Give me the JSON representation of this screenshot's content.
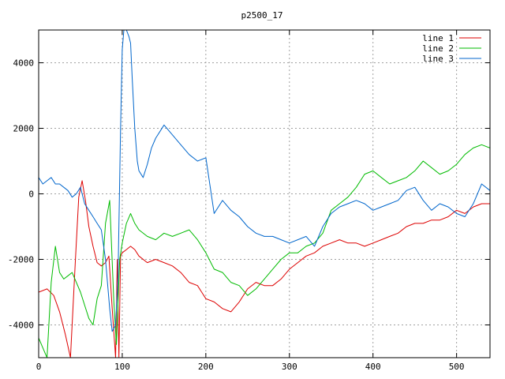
{
  "chart_data": {
    "type": "line",
    "title": "p2500_17",
    "xlabel": "",
    "ylabel": "",
    "xlim": [
      0,
      540
    ],
    "ylim": [
      -5000,
      5000
    ],
    "xticks": [
      0,
      100,
      200,
      300,
      400,
      500
    ],
    "yticks": [
      -4000,
      -2000,
      0,
      2000,
      4000
    ],
    "xtick_labels": [
      "0",
      "100",
      "200",
      "300",
      "400",
      "500"
    ],
    "ytick_labels": [
      "-4000",
      "-2000",
      "0",
      "2000",
      "4000"
    ],
    "grid": true,
    "legend_position": "top-right",
    "series": [
      {
        "name": "line 1",
        "color": "#dd0000",
        "x": [
          0,
          10,
          18,
          25,
          32,
          38,
          44,
          48,
          52,
          56,
          60,
          65,
          70,
          75,
          80,
          84,
          88,
          92,
          94,
          96,
          98,
          100,
          105,
          110,
          115,
          120,
          130,
          140,
          150,
          160,
          170,
          180,
          190,
          200,
          210,
          220,
          230,
          240,
          250,
          260,
          270,
          280,
          290,
          300,
          310,
          320,
          330,
          340,
          350,
          360,
          370,
          380,
          390,
          400,
          410,
          420,
          430,
          440,
          450,
          460,
          470,
          480,
          490,
          500,
          510,
          520,
          530,
          540
        ],
        "y": [
          -3000,
          -2900,
          -3100,
          -3600,
          -4300,
          -5000,
          -2000,
          -100,
          400,
          -200,
          -1000,
          -1600,
          -2100,
          -2200,
          -2100,
          -1900,
          -3500,
          -5000,
          -2000,
          -5000,
          -1900,
          -1800,
          -1700,
          -1600,
          -1700,
          -1900,
          -2100,
          -2000,
          -2100,
          -2200,
          -2400,
          -2700,
          -2800,
          -3200,
          -3300,
          -3500,
          -3600,
          -3300,
          -2900,
          -2700,
          -2800,
          -2800,
          -2600,
          -2300,
          -2100,
          -1900,
          -1800,
          -1600,
          -1500,
          -1400,
          -1500,
          -1500,
          -1600,
          -1500,
          -1400,
          -1300,
          -1200,
          -1000,
          -900,
          -900,
          -800,
          -800,
          -700,
          -500,
          -600,
          -400,
          -300,
          -300
        ]
      },
      {
        "name": "line 2",
        "color": "#00bb00",
        "x": [
          0,
          5,
          10,
          15,
          20,
          25,
          30,
          35,
          40,
          45,
          50,
          55,
          60,
          65,
          70,
          75,
          80,
          85,
          90,
          93,
          97,
          100,
          105,
          110,
          115,
          120,
          130,
          140,
          150,
          160,
          170,
          180,
          190,
          200,
          210,
          220,
          230,
          240,
          250,
          260,
          270,
          280,
          290,
          300,
          310,
          320,
          330,
          340,
          350,
          360,
          370,
          380,
          390,
          400,
          410,
          420,
          430,
          440,
          450,
          460,
          470,
          480,
          490,
          500,
          510,
          520,
          530,
          540
        ],
        "y": [
          -4400,
          -4700,
          -5000,
          -2700,
          -1600,
          -2400,
          -2600,
          -2500,
          -2400,
          -2700,
          -3000,
          -3400,
          -3800,
          -4000,
          -3200,
          -2800,
          -900,
          -200,
          -3300,
          -4600,
          -2000,
          -1500,
          -900,
          -600,
          -900,
          -1100,
          -1300,
          -1400,
          -1200,
          -1300,
          -1200,
          -1100,
          -1400,
          -1800,
          -2300,
          -2400,
          -2700,
          -2800,
          -3100,
          -2900,
          -2600,
          -2300,
          -2000,
          -1800,
          -1800,
          -1600,
          -1500,
          -1200,
          -500,
          -300,
          -100,
          200,
          600,
          700,
          500,
          300,
          400,
          500,
          700,
          1000,
          800,
          600,
          700,
          900,
          1200,
          1400,
          1500,
          1400
        ]
      },
      {
        "name": "line 3",
        "color": "#0066cc",
        "x": [
          0,
          5,
          10,
          15,
          20,
          25,
          30,
          35,
          40,
          45,
          50,
          55,
          60,
          65,
          70,
          75,
          80,
          85,
          88,
          92,
          95,
          98,
          100,
          102,
          105,
          108,
          110,
          112,
          115,
          118,
          120,
          125,
          130,
          135,
          140,
          145,
          150,
          160,
          170,
          180,
          190,
          200,
          210,
          220,
          230,
          240,
          250,
          260,
          270,
          280,
          290,
          300,
          310,
          320,
          330,
          340,
          350,
          360,
          370,
          380,
          390,
          400,
          410,
          420,
          430,
          440,
          450,
          460,
          470,
          480,
          490,
          500,
          510,
          520,
          530,
          540
        ],
        "y": [
          500,
          300,
          400,
          500,
          300,
          300,
          200,
          100,
          -100,
          0,
          200,
          -300,
          -500,
          -700,
          -900,
          -1100,
          -2000,
          -3500,
          -4200,
          -4000,
          -2500,
          2000,
          4400,
          5000,
          5000,
          4800,
          4600,
          3500,
          2000,
          1000,
          700,
          500,
          900,
          1400,
          1700,
          1900,
          2100,
          1800,
          1500,
          1200,
          1000,
          1100,
          -600,
          -200,
          -500,
          -700,
          -1000,
          -1200,
          -1300,
          -1300,
          -1400,
          -1500,
          -1400,
          -1300,
          -1600,
          -1000,
          -600,
          -400,
          -300,
          -200,
          -300,
          -500,
          -400,
          -300,
          -200,
          100,
          200,
          -200,
          -500,
          -300,
          -400,
          -600,
          -700,
          -300,
          300,
          100
        ]
      }
    ]
  }
}
